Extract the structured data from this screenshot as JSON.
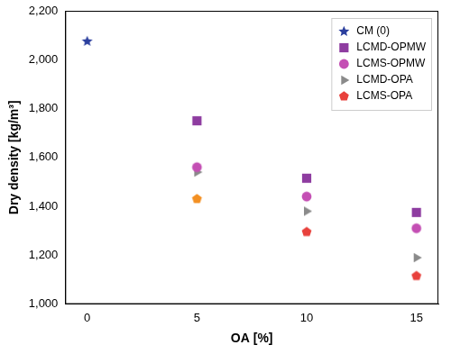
{
  "chart_data": {
    "type": "scatter",
    "xlabel": "OA [%]",
    "ylabel": "Dry density [kg/m³]",
    "xlim": [
      -1,
      16
    ],
    "xticks": [
      0,
      5,
      10,
      15
    ],
    "ylim": [
      1000,
      2200
    ],
    "yticks": [
      1000,
      1200,
      1400,
      1600,
      1800,
      2000,
      2200
    ],
    "grid": false,
    "legend": "upper right",
    "series": [
      {
        "name": "CM (0)",
        "color": "#2b3f9e",
        "marker": "star",
        "x": [
          0
        ],
        "values": [
          2075
        ]
      },
      {
        "name": "LCMD-OPMW",
        "color": "#8e3ca0",
        "marker": "square",
        "x": [
          5,
          10,
          15
        ],
        "values": [
          1750,
          1515,
          1375
        ]
      },
      {
        "name": "LCMS-OPMW",
        "color": "#c44fb4",
        "marker": "circle",
        "x": [
          5,
          10,
          15
        ],
        "values": [
          1560,
          1440,
          1310
        ]
      },
      {
        "name": "LCMD-OPA",
        "color": "#8a8a8a",
        "marker": "triangle-right",
        "x": [
          5,
          10,
          15
        ],
        "values": [
          1540,
          1380,
          1190
        ]
      },
      {
        "name": "LCMS-OPA",
        "color": "#e8413c",
        "colors": [
          "#f39022",
          "#e8413c",
          "#e8413c"
        ],
        "marker": "pentagon",
        "x": [
          5,
          10,
          15
        ],
        "values": [
          1430,
          1295,
          1115
        ]
      }
    ]
  }
}
